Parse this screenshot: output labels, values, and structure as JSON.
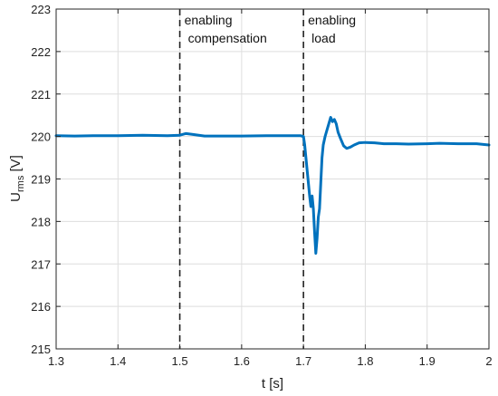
{
  "chart_data": {
    "type": "line",
    "xlabel": "t [s]",
    "ylabel": {
      "main": "U",
      "sub": "rms",
      "unit": " [V]"
    },
    "xlim": [
      1.3,
      2.0
    ],
    "ylim": [
      215,
      223
    ],
    "xticks": [
      1.3,
      1.4,
      1.5,
      1.6,
      1.7,
      1.8,
      1.9,
      2.0
    ],
    "xtick_labels": [
      "1.3",
      "1.4",
      "1.5",
      "1.6",
      "1.7",
      "1.8",
      "1.9",
      "2"
    ],
    "yticks": [
      215,
      216,
      217,
      218,
      219,
      220,
      221,
      222,
      223
    ],
    "ytick_labels": [
      "215",
      "216",
      "217",
      "218",
      "219",
      "220",
      "221",
      "222",
      "223"
    ],
    "grid": true,
    "line_color": "#0072BD",
    "series": [
      {
        "points": [
          [
            1.3,
            220.02
          ],
          [
            1.33,
            220.01
          ],
          [
            1.36,
            220.02
          ],
          [
            1.4,
            220.02
          ],
          [
            1.44,
            220.03
          ],
          [
            1.48,
            220.02
          ],
          [
            1.5,
            220.03
          ],
          [
            1.51,
            220.07
          ],
          [
            1.52,
            220.05
          ],
          [
            1.54,
            220.01
          ],
          [
            1.57,
            220.01
          ],
          [
            1.6,
            220.01
          ],
          [
            1.64,
            220.02
          ],
          [
            1.67,
            220.02
          ],
          [
            1.695,
            220.02
          ],
          [
            1.7,
            220.0
          ],
          [
            1.702,
            219.8
          ],
          [
            1.704,
            219.5
          ],
          [
            1.706,
            219.2
          ],
          [
            1.708,
            218.9
          ],
          [
            1.71,
            218.6
          ],
          [
            1.712,
            218.35
          ],
          [
            1.714,
            218.6
          ],
          [
            1.716,
            218.3
          ],
          [
            1.718,
            217.75
          ],
          [
            1.72,
            217.25
          ],
          [
            1.722,
            217.6
          ],
          [
            1.724,
            218.1
          ],
          [
            1.726,
            218.3
          ],
          [
            1.728,
            218.9
          ],
          [
            1.73,
            219.5
          ],
          [
            1.732,
            219.8
          ],
          [
            1.735,
            220.0
          ],
          [
            1.738,
            220.15
          ],
          [
            1.741,
            220.3
          ],
          [
            1.744,
            220.45
          ],
          [
            1.747,
            220.35
          ],
          [
            1.75,
            220.4
          ],
          [
            1.753,
            220.3
          ],
          [
            1.756,
            220.1
          ],
          [
            1.76,
            219.95
          ],
          [
            1.765,
            219.78
          ],
          [
            1.77,
            219.72
          ],
          [
            1.776,
            219.75
          ],
          [
            1.782,
            219.8
          ],
          [
            1.79,
            219.85
          ],
          [
            1.8,
            219.86
          ],
          [
            1.815,
            219.85
          ],
          [
            1.83,
            219.83
          ],
          [
            1.85,
            219.83
          ],
          [
            1.87,
            219.82
          ],
          [
            1.9,
            219.83
          ],
          [
            1.92,
            219.84
          ],
          [
            1.95,
            219.83
          ],
          [
            1.98,
            219.83
          ],
          [
            2.0,
            219.8
          ]
        ]
      }
    ],
    "event_lines": [
      {
        "x": 1.5,
        "label_lines": [
          "enabling",
          "compensation"
        ]
      },
      {
        "x": 1.7,
        "label_lines": [
          "enabling",
          "load"
        ]
      }
    ]
  }
}
